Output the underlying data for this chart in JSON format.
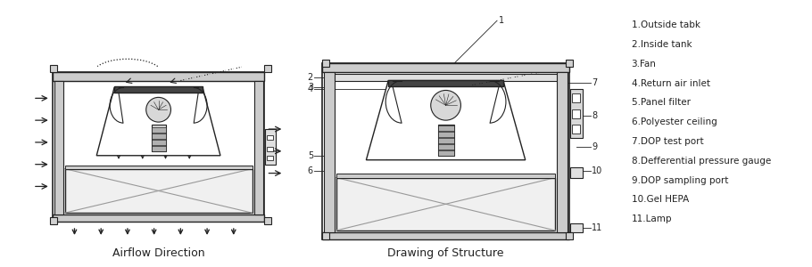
{
  "label_airflow": "Airflow Direction",
  "label_structure": "Drawing of Structure",
  "legend_items": [
    "1.Outside tabk",
    "2.Inside tank",
    "3.Fan",
    "4.Return air inlet",
    "5.Panel filter",
    "6.Polyester ceiling",
    "7.DOP test port",
    "8.Defferential pressure gauge",
    "9.DOP sampling port",
    "10.Gel HEPA",
    "11.Lamp"
  ],
  "bg_color": "#ffffff",
  "line_color": "#222222",
  "gray_color": "#999999",
  "light_gray": "#cccccc",
  "mid_gray": "#bbbbbb"
}
